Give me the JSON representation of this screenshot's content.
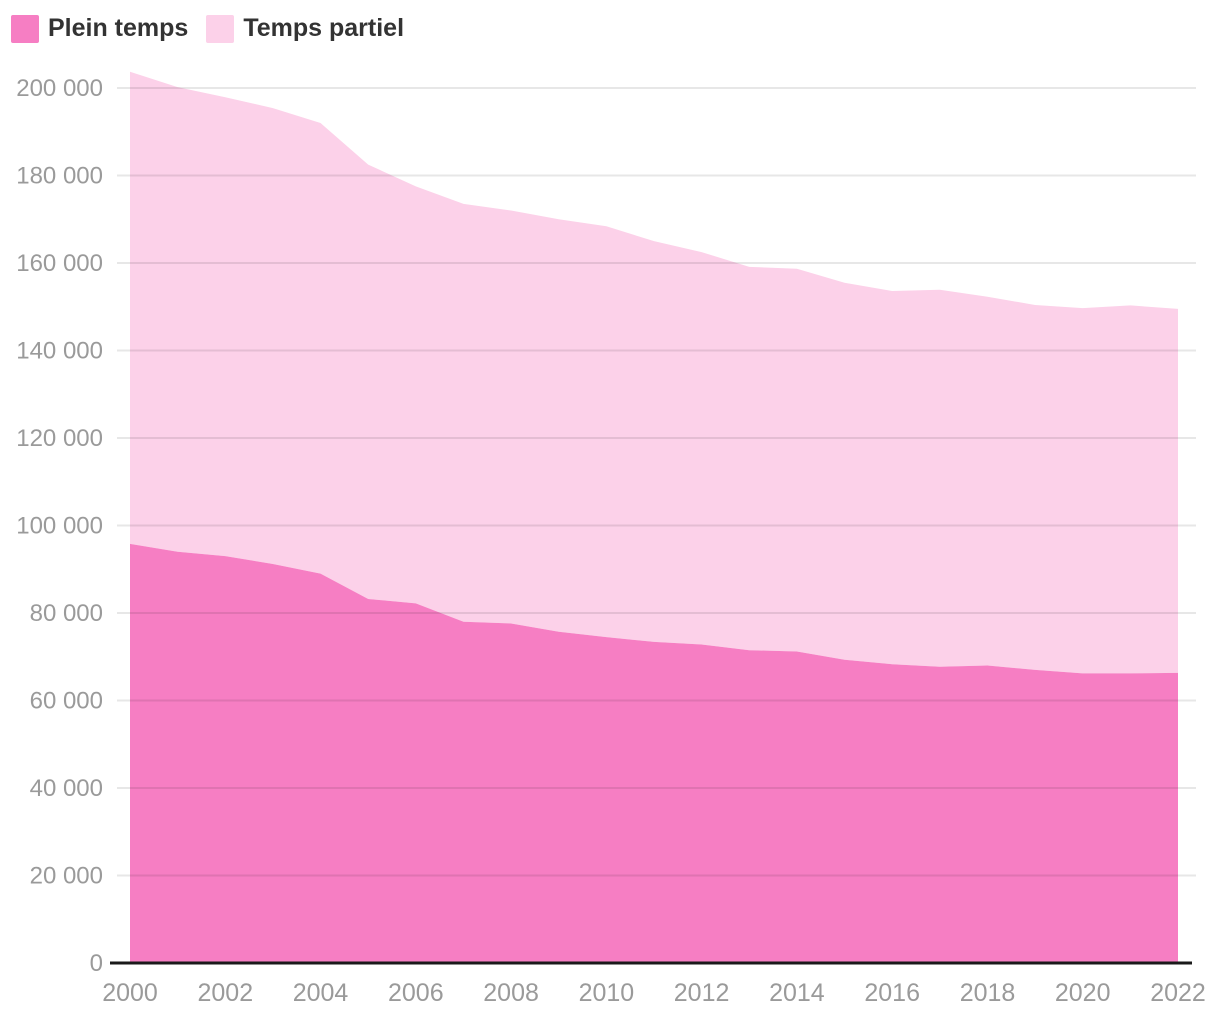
{
  "legend": {
    "position": "top-left",
    "items": [
      {
        "label": "Plein temps"
      },
      {
        "label": "Temps partiel"
      }
    ]
  },
  "colors": {
    "plein_temps": "#f67ec3",
    "temps_partiel": "#fcd1e9",
    "gridline": "rgba(17,17,17,0.10)",
    "axis_line": "#1a1a1a",
    "tick_label": "#9a9a9a",
    "legend_text": "#333333",
    "background": "#ffffff"
  },
  "chart_data": {
    "type": "area",
    "stacked": true,
    "title": "",
    "xlabel": "",
    "ylabel": "",
    "x": [
      2000,
      2001,
      2002,
      2003,
      2004,
      2005,
      2006,
      2007,
      2008,
      2009,
      2010,
      2011,
      2012,
      2013,
      2014,
      2015,
      2016,
      2017,
      2018,
      2019,
      2020,
      2021,
      2022
    ],
    "series": [
      {
        "name": "Plein temps",
        "color": "#f67ec3",
        "values": [
          95800,
          94000,
          93000,
          91200,
          89000,
          83200,
          82200,
          78000,
          77600,
          75700,
          74500,
          73400,
          72800,
          71500,
          71200,
          69300,
          68300,
          67700,
          68000,
          67000,
          66200,
          66200,
          66300
        ]
      },
      {
        "name": "Temps partiel",
        "color": "#fcd1e9",
        "values": [
          107900,
          106200,
          104900,
          104200,
          103000,
          99300,
          95300,
          95500,
          94400,
          94300,
          93900,
          91600,
          89700,
          87600,
          87500,
          86200,
          85300,
          86200,
          84300,
          83400,
          83500,
          84100,
          83200
        ]
      }
    ],
    "totals": [
      203700,
      200200,
      197900,
      195400,
      192000,
      182500,
      177500,
      173500,
      172000,
      170000,
      168400,
      165000,
      162500,
      159100,
      158700,
      155500,
      153600,
      153900,
      152300,
      150400,
      149700,
      150300,
      149500
    ],
    "ylim": [
      0,
      200000
    ],
    "ytick_step": 20000,
    "yticks": [
      0,
      20000,
      40000,
      60000,
      80000,
      100000,
      120000,
      140000,
      160000,
      180000,
      200000
    ],
    "xticks": [
      2000,
      2002,
      2004,
      2006,
      2008,
      2010,
      2012,
      2014,
      2016,
      2018,
      2020,
      2022
    ],
    "grid": true,
    "legend_position": "top-left",
    "number_format": "space-thousands"
  }
}
